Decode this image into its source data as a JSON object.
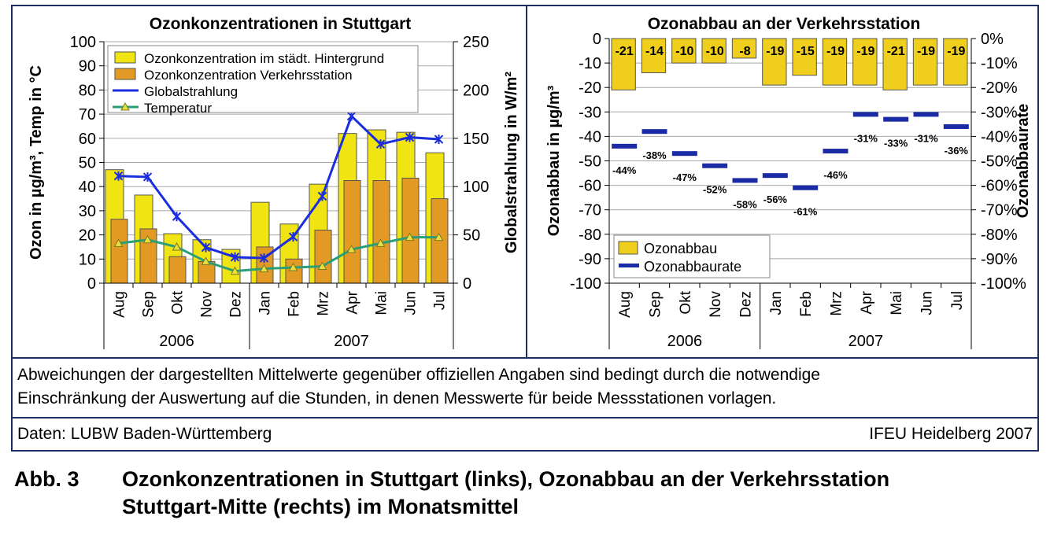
{
  "chart_data": [
    {
      "type": "bar",
      "title": "Ozonkonzentrationen in Stuttgart",
      "ylabel": "Ozon in µg/m³, Temp in °C",
      "y2label": "Globalstrahlung in W/m²",
      "ylim": [
        0,
        100
      ],
      "y2lim": [
        0,
        250
      ],
      "yticks": [
        "100",
        "90",
        "80",
        "70",
        "60",
        "50",
        "40",
        "30",
        "20",
        "10",
        "0"
      ],
      "y2ticks": [
        "250",
        "200",
        "150",
        "100",
        "50",
        "0"
      ],
      "categories": [
        "Aug",
        "Sep",
        "Okt",
        "Nov",
        "Dez",
        "Jan",
        "Feb",
        "Mrz",
        "Apr",
        "Mai",
        "Jun",
        "Jul"
      ],
      "years": [
        {
          "label": "2006",
          "from": 0,
          "to": 4
        },
        {
          "label": "2007",
          "from": 5,
          "to": 11
        }
      ],
      "legend_position": "top-left",
      "grid": true,
      "series": [
        {
          "name": "Ozonkonzentration im städt. Hintergrund",
          "kind": "bar",
          "color": "#f0e412",
          "values": [
            47,
            36.5,
            20.5,
            18,
            14,
            33.5,
            24.5,
            41,
            62,
            63.5,
            62.5,
            54
          ]
        },
        {
          "name": "Ozonkonzentration Verkehrsstation",
          "kind": "bar",
          "color": "#e39a25",
          "values": [
            26.5,
            22.5,
            11,
            9,
            0,
            15,
            10,
            22,
            42.5,
            42.5,
            43.5,
            35
          ]
        },
        {
          "name": "Globalstrahlung",
          "kind": "line",
          "axis": "right",
          "color": "#1a2ee0",
          "values": [
            111,
            110,
            69,
            37,
            27,
            26,
            48,
            90,
            173,
            144,
            151,
            149
          ]
        },
        {
          "name": "Temperatur",
          "kind": "line",
          "axis": "left",
          "color": "#2b9e78",
          "values": [
            16.5,
            18,
            15,
            9,
            5,
            6,
            6.5,
            7,
            14,
            16.5,
            19,
            19
          ]
        }
      ]
    },
    {
      "type": "bar",
      "title": "Ozonabbau an der Verkehrsstation",
      "ylabel": "Ozonabbau in µg/m³",
      "y2label": "Ozonabbaurate",
      "ylim": [
        -100,
        0
      ],
      "y2lim": [
        -100,
        0
      ],
      "yticks": [
        "0",
        "-10",
        "-20",
        "-30",
        "-40",
        "-50",
        "-60",
        "-70",
        "-80",
        "-90",
        "-100"
      ],
      "y2ticks": [
        "0%",
        "-10%",
        "-20%",
        "-30%",
        "-40%",
        "-50%",
        "-60%",
        "-70%",
        "-80%",
        "-90%",
        "-100%"
      ],
      "categories": [
        "Aug",
        "Sep",
        "Okt",
        "Nov",
        "Dez",
        "Jan",
        "Feb",
        "Mrz",
        "Apr",
        "Mai",
        "Jun",
        "Jul"
      ],
      "years": [
        {
          "label": "2006",
          "from": 0,
          "to": 4
        },
        {
          "label": "2007",
          "from": 5,
          "to": 11
        }
      ],
      "legend_position": "bottom-left",
      "grid": true,
      "series": [
        {
          "name": "Ozonabbau",
          "kind": "bar",
          "color": "#f0cf1c",
          "values": [
            -21,
            -14,
            -10,
            -10,
            -8,
            -19,
            -15,
            -19,
            -19,
            -21,
            -19,
            -19
          ],
          "labels": [
            "-21",
            "-14",
            "-10",
            "-10",
            "-8",
            "-19",
            "-15",
            "-19",
            "-19",
            "-21",
            "-19",
            "-19"
          ]
        },
        {
          "name": "Ozonabbaurate",
          "kind": "marker",
          "color": "#1b2ba6",
          "values": [
            -44,
            -38,
            -47,
            -52,
            -58,
            -56,
            -61,
            -46,
            -31,
            -33,
            -31,
            -36
          ],
          "labels": [
            "-44%",
            "-38%",
            "-47%",
            "-52%",
            "-58%",
            "-56%",
            "-61%",
            "-46%",
            "-31%",
            "-33%",
            "-31%",
            "-36%"
          ]
        }
      ]
    }
  ],
  "note": {
    "line1": "Abweichungen der dargestellten Mittelwerte gegenüber offiziellen Angaben sind bedingt durch die notwendige",
    "line2": "Einschränkung der Auswertung auf die Stunden, in denen Messwerte für beide Messstationen vorlagen."
  },
  "source": {
    "left": "Daten: LUBW Baden-Württemberg",
    "right": "IFEU Heidelberg 2007"
  },
  "caption": {
    "number": "Abb. 3",
    "line1": "Ozonkonzentrationen in Stuttgart (links), Ozonabbau an der Verkehrsstation",
    "line2": "Stuttgart-Mitte (rechts) im Monatsmittel"
  }
}
